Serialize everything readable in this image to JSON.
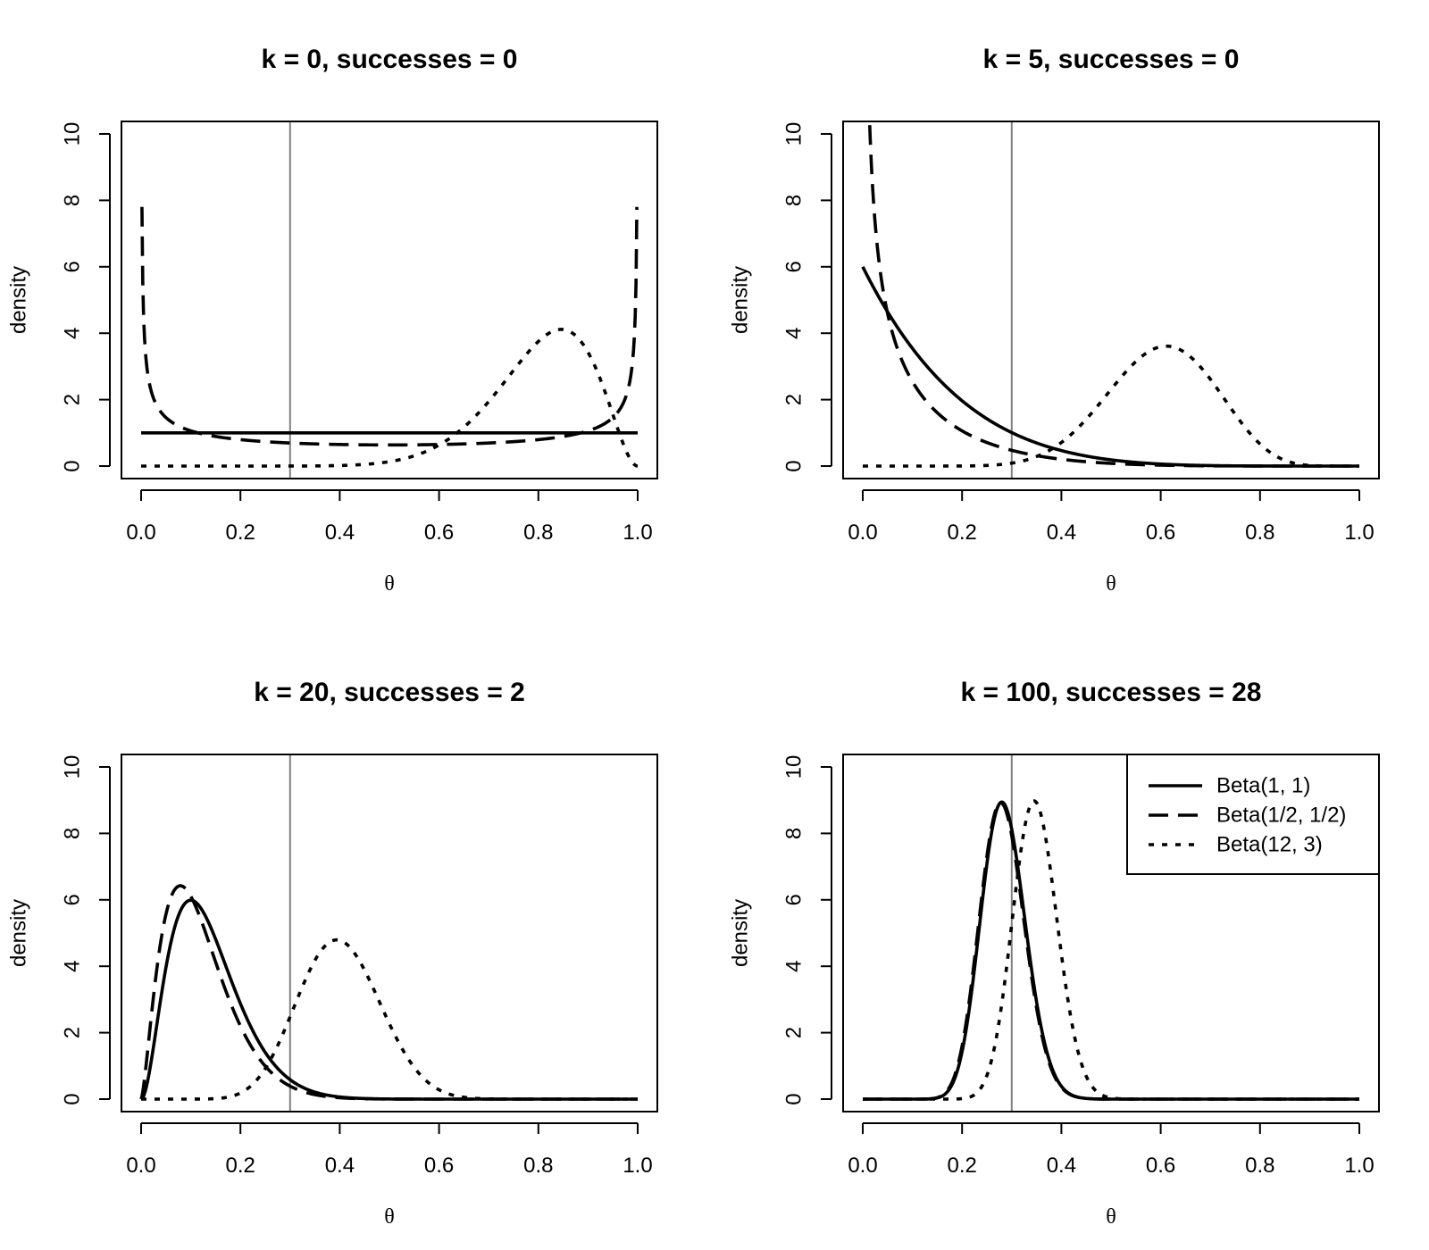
{
  "chart_data": [
    {
      "type": "line",
      "title": "k = 0, successes = 0",
      "k": 0,
      "successes": 0,
      "xlabel": "θ",
      "ylabel": "density",
      "xlim": [
        0,
        1
      ],
      "ylim": [
        0,
        10
      ],
      "xticks": [
        "0.0",
        "0.2",
        "0.4",
        "0.6",
        "0.8",
        "1.0"
      ],
      "yticks": [
        "0",
        "2",
        "4",
        "6",
        "8",
        "10"
      ],
      "vline": 0.3,
      "series": [
        {
          "name": "Beta(1, 1)",
          "style": "solid",
          "a": 1,
          "b": 1
        },
        {
          "name": "Beta(1/2, 1/2)",
          "style": "dashed",
          "a": 0.5,
          "b": 0.5
        },
        {
          "name": "Beta(12, 3)",
          "style": "dotted",
          "a": 12,
          "b": 3
        }
      ],
      "legend": null
    },
    {
      "type": "line",
      "title": "k = 5, successes = 0",
      "k": 5,
      "successes": 0,
      "xlabel": "θ",
      "ylabel": "density",
      "xlim": [
        0,
        1
      ],
      "ylim": [
        0,
        10
      ],
      "xticks": [
        "0.0",
        "0.2",
        "0.4",
        "0.6",
        "0.8",
        "1.0"
      ],
      "yticks": [
        "0",
        "2",
        "4",
        "6",
        "8",
        "10"
      ],
      "vline": 0.3,
      "series": [
        {
          "name": "Beta(1, 1)",
          "style": "solid",
          "a": 1,
          "b": 6
        },
        {
          "name": "Beta(1/2, 1/2)",
          "style": "dashed",
          "a": 0.5,
          "b": 5.5
        },
        {
          "name": "Beta(12, 3)",
          "style": "dotted",
          "a": 12,
          "b": 8
        }
      ],
      "legend": null
    },
    {
      "type": "line",
      "title": "k = 20, successes = 2",
      "k": 20,
      "successes": 2,
      "xlabel": "θ",
      "ylabel": "density",
      "xlim": [
        0,
        1
      ],
      "ylim": [
        0,
        10
      ],
      "xticks": [
        "0.0",
        "0.2",
        "0.4",
        "0.6",
        "0.8",
        "1.0"
      ],
      "yticks": [
        "0",
        "2",
        "4",
        "6",
        "8",
        "10"
      ],
      "vline": 0.3,
      "series": [
        {
          "name": "Beta(1, 1)",
          "style": "solid",
          "a": 3,
          "b": 19
        },
        {
          "name": "Beta(1/2, 1/2)",
          "style": "dashed",
          "a": 2.5,
          "b": 18.5
        },
        {
          "name": "Beta(12, 3)",
          "style": "dotted",
          "a": 14,
          "b": 21
        }
      ],
      "legend": null
    },
    {
      "type": "line",
      "title": "k = 100, successes = 28",
      "k": 100,
      "successes": 28,
      "xlabel": "θ",
      "ylabel": "density",
      "xlim": [
        0,
        1
      ],
      "ylim": [
        0,
        10
      ],
      "xticks": [
        "0.0",
        "0.2",
        "0.4",
        "0.6",
        "0.8",
        "1.0"
      ],
      "yticks": [
        "0",
        "2",
        "4",
        "6",
        "8",
        "10"
      ],
      "vline": 0.3,
      "series": [
        {
          "name": "Beta(1, 1)",
          "style": "solid",
          "a": 29,
          "b": 73
        },
        {
          "name": "Beta(1/2, 1/2)",
          "style": "dashed",
          "a": 28.5,
          "b": 72.5
        },
        {
          "name": "Beta(12, 3)",
          "style": "dotted",
          "a": 40,
          "b": 75
        }
      ],
      "legend": {
        "placement": "top-right",
        "entries": [
          {
            "label": "Beta(1, 1)",
            "style": "solid"
          },
          {
            "label": "Beta(1/2, 1/2)",
            "style": "dashed"
          },
          {
            "label": "Beta(12, 3)",
            "style": "dotted"
          }
        ]
      }
    }
  ],
  "colors": {
    "curve": "#000000",
    "reference_line": "#808080",
    "background": "#ffffff"
  }
}
